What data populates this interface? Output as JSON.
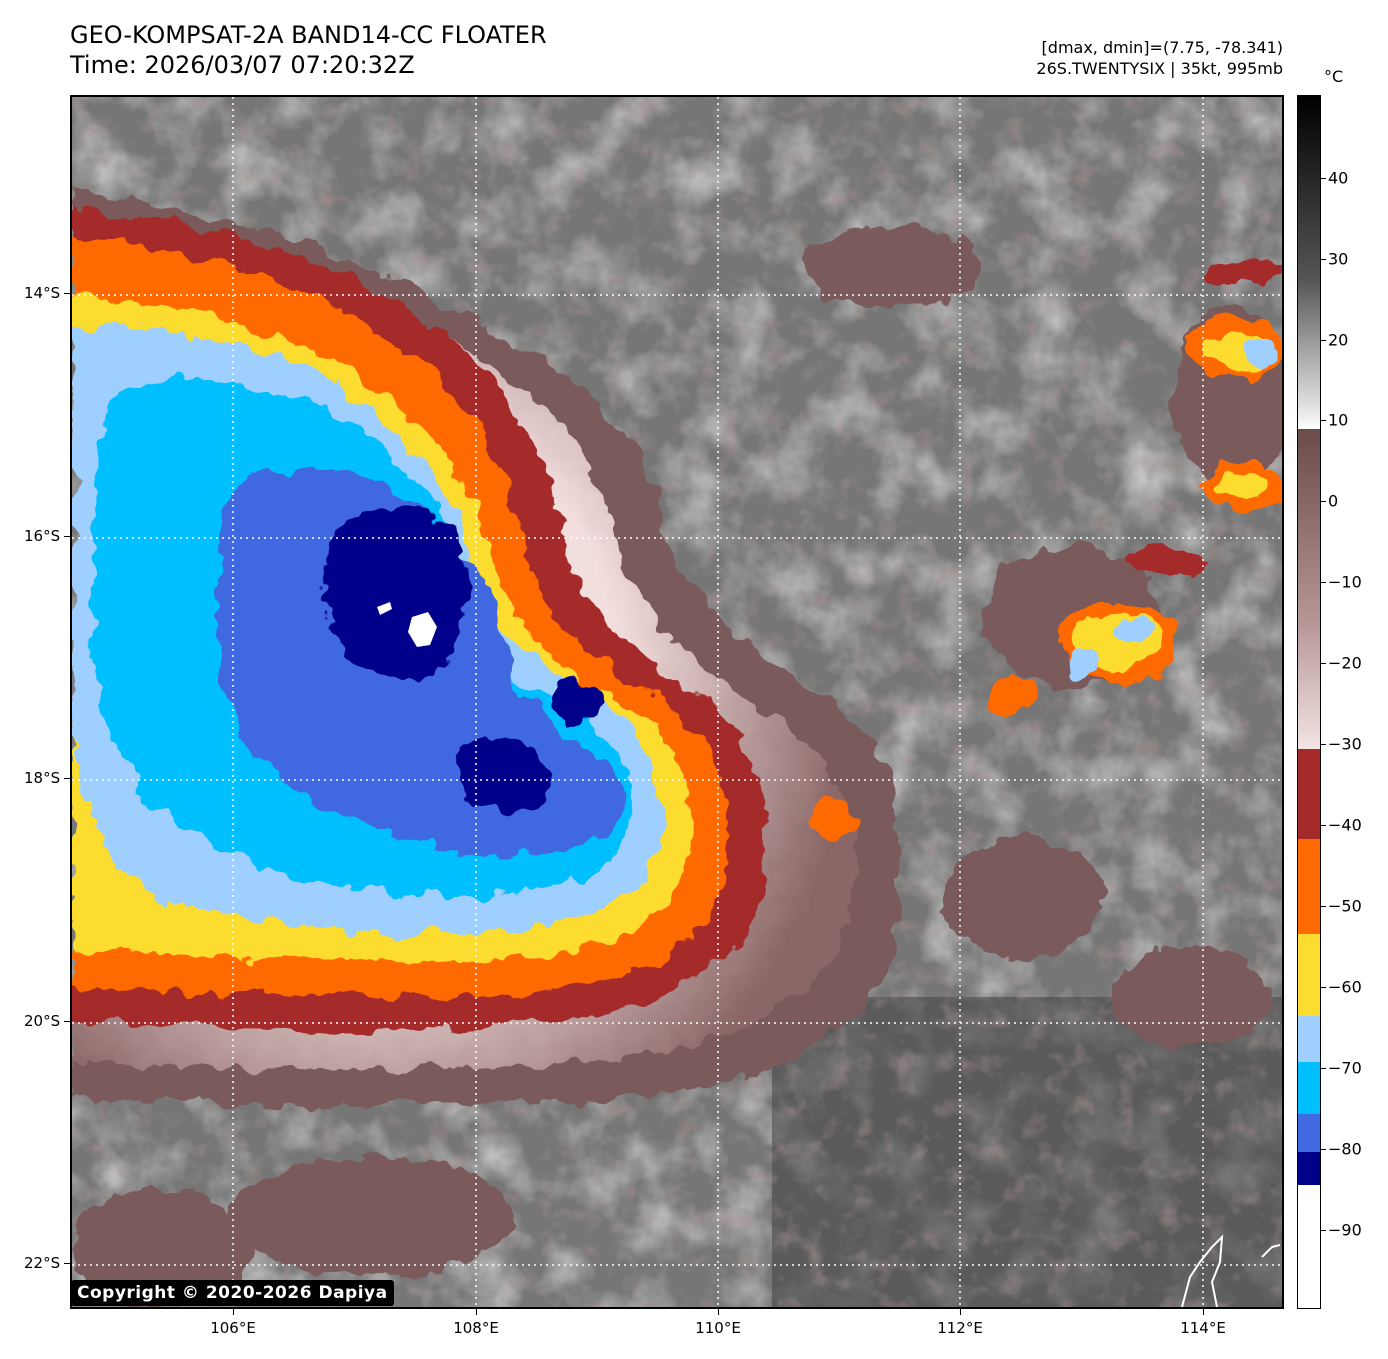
{
  "title": {
    "line1": "GEO-KOMPSAT-2A BAND14-CC FLOATER",
    "line2": "Time: 2026/03/07 07:20:32Z"
  },
  "info": {
    "line1": "[dmax, dmin]=(7.75, -78.341)",
    "line2": "26S.TWENTYSIX | 35kt, 995mb"
  },
  "axes": {
    "y_ticks": [
      "14°S",
      "16°S",
      "18°S",
      "20°S",
      "22°S"
    ],
    "x_ticks": [
      "106°E",
      "108°E",
      "110°E",
      "112°E",
      "114°E"
    ]
  },
  "colorbar": {
    "unit": "°C",
    "ticks": [
      "40",
      "30",
      "20",
      "10",
      "0",
      "−10",
      "−20",
      "−30",
      "−40",
      "−50",
      "−60",
      "−70",
      "−80",
      "−90"
    ],
    "colors": {
      "black": "#000000",
      "white": "#ffffff",
      "brown_dark": "#6b4a4a",
      "brown_light": "#f3e4e4",
      "red": "#a52a2a",
      "orange": "#ff6a00",
      "yellow": "#fcdc2f",
      "light_blue": "#9ecfff",
      "cyan": "#00bfff",
      "royal_blue": "#4169e1",
      "navy": "#00008b"
    }
  },
  "copyright": "Copyright © 2020-2026 Dapiya"
}
